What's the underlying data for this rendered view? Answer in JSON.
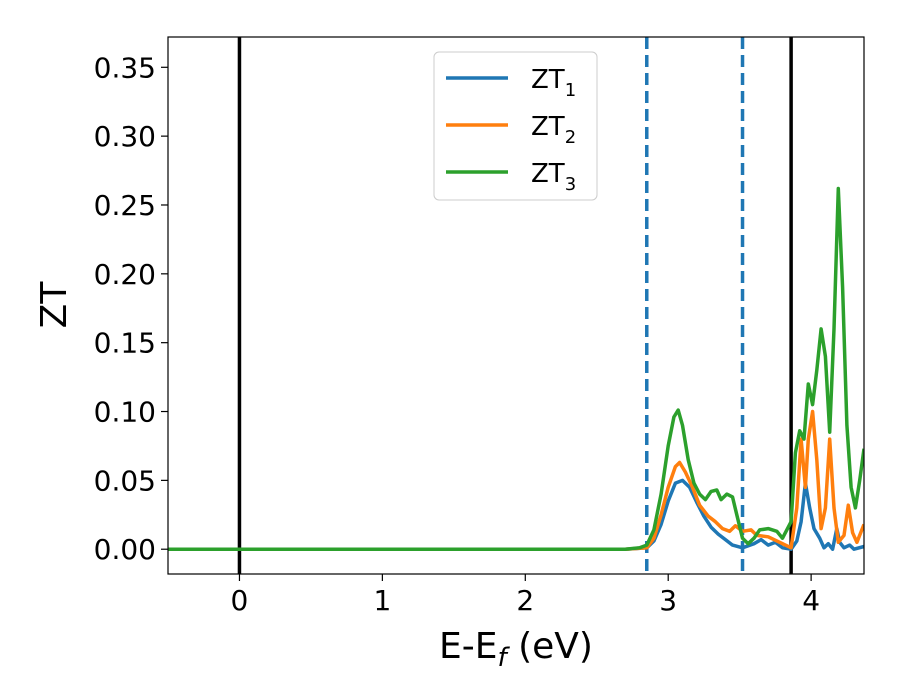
{
  "chart_data": {
    "type": "line",
    "xlabel_main": "E-E",
    "xlabel_sub": "f",
    "xlabel_unit": " (eV)",
    "ylabel": "ZT",
    "xlim": [
      -0.5,
      4.37
    ],
    "ylim": [
      -0.018,
      0.372
    ],
    "x_ticks": [
      0,
      1,
      2,
      3,
      4
    ],
    "x_tick_labels": [
      "0",
      "1",
      "2",
      "3",
      "4"
    ],
    "y_ticks": [
      0.0,
      0.05,
      0.1,
      0.15,
      0.2,
      0.25,
      0.3,
      0.35
    ],
    "y_tick_labels": [
      "0.00",
      "0.05",
      "0.10",
      "0.15",
      "0.20",
      "0.25",
      "0.30",
      "0.35"
    ],
    "grid": false,
    "legend_position": "top-center",
    "vertical_lines": [
      {
        "x": 0.0,
        "style": "solid",
        "color": "#000000"
      },
      {
        "x": 2.85,
        "style": "dashed",
        "color": "#1f77b4"
      },
      {
        "x": 3.52,
        "style": "dashed",
        "color": "#1f77b4"
      },
      {
        "x": 3.86,
        "style": "solid",
        "color": "#000000"
      }
    ],
    "series": [
      {
        "name": "ZT",
        "subscript": "1",
        "color": "#1f77b4",
        "points": [
          [
            -0.5,
            0
          ],
          [
            2.7,
            0
          ],
          [
            2.85,
            0.001
          ],
          [
            2.9,
            0.006
          ],
          [
            2.95,
            0.018
          ],
          [
            3.0,
            0.035
          ],
          [
            3.05,
            0.048
          ],
          [
            3.1,
            0.05
          ],
          [
            3.15,
            0.045
          ],
          [
            3.2,
            0.034
          ],
          [
            3.25,
            0.024
          ],
          [
            3.3,
            0.016
          ],
          [
            3.35,
            0.011
          ],
          [
            3.4,
            0.007
          ],
          [
            3.45,
            0.003
          ],
          [
            3.52,
            0.001
          ],
          [
            3.6,
            0.004
          ],
          [
            3.65,
            0.007
          ],
          [
            3.7,
            0.003
          ],
          [
            3.75,
            0.005
          ],
          [
            3.8,
            0.001
          ],
          [
            3.86,
            0
          ],
          [
            3.9,
            0.006
          ],
          [
            3.93,
            0.02
          ],
          [
            3.96,
            0.048
          ],
          [
            3.99,
            0.03
          ],
          [
            4.02,
            0.015
          ],
          [
            4.06,
            0.008
          ],
          [
            4.09,
            0.001
          ],
          [
            4.12,
            0.004
          ],
          [
            4.15,
            0
          ],
          [
            4.18,
            0.015
          ],
          [
            4.2,
            0.005
          ],
          [
            4.23,
            0.001
          ],
          [
            4.27,
            0.003
          ],
          [
            4.3,
            0
          ],
          [
            4.37,
            0.002
          ]
        ]
      },
      {
        "name": "ZT",
        "subscript": "2",
        "color": "#ff7f0e",
        "points": [
          [
            -0.5,
            0
          ],
          [
            2.7,
            0
          ],
          [
            2.85,
            0.001
          ],
          [
            2.9,
            0.008
          ],
          [
            2.95,
            0.025
          ],
          [
            3.0,
            0.045
          ],
          [
            3.05,
            0.06
          ],
          [
            3.08,
            0.063
          ],
          [
            3.12,
            0.056
          ],
          [
            3.17,
            0.045
          ],
          [
            3.22,
            0.032
          ],
          [
            3.28,
            0.024
          ],
          [
            3.33,
            0.02
          ],
          [
            3.38,
            0.015
          ],
          [
            3.43,
            0.013
          ],
          [
            3.47,
            0.017
          ],
          [
            3.52,
            0.013
          ],
          [
            3.58,
            0.014
          ],
          [
            3.62,
            0.01
          ],
          [
            3.7,
            0.009
          ],
          [
            3.78,
            0.005
          ],
          [
            3.86,
            0.001
          ],
          [
            3.9,
            0.03
          ],
          [
            3.93,
            0.08
          ],
          [
            3.96,
            0.045
          ],
          [
            3.98,
            0.08
          ],
          [
            4.01,
            0.1
          ],
          [
            4.04,
            0.065
          ],
          [
            4.07,
            0.015
          ],
          [
            4.1,
            0.03
          ],
          [
            4.13,
            0.08
          ],
          [
            4.16,
            0.03
          ],
          [
            4.19,
            0.005
          ],
          [
            4.23,
            0.01
          ],
          [
            4.26,
            0.032
          ],
          [
            4.29,
            0.012
          ],
          [
            4.32,
            0.005
          ],
          [
            4.37,
            0.018
          ]
        ]
      },
      {
        "name": "ZT",
        "subscript": "3",
        "color": "#2ca02c",
        "points": [
          [
            -0.5,
            0
          ],
          [
            2.7,
            0
          ],
          [
            2.8,
            0.001
          ],
          [
            2.85,
            0.003
          ],
          [
            2.9,
            0.014
          ],
          [
            2.95,
            0.04
          ],
          [
            3.0,
            0.075
          ],
          [
            3.04,
            0.096
          ],
          [
            3.07,
            0.101
          ],
          [
            3.1,
            0.09
          ],
          [
            3.14,
            0.065
          ],
          [
            3.18,
            0.048
          ],
          [
            3.22,
            0.04
          ],
          [
            3.26,
            0.036
          ],
          [
            3.3,
            0.042
          ],
          [
            3.34,
            0.043
          ],
          [
            3.37,
            0.036
          ],
          [
            3.41,
            0.04
          ],
          [
            3.45,
            0.038
          ],
          [
            3.48,
            0.025
          ],
          [
            3.52,
            0.008
          ],
          [
            3.56,
            0.004
          ],
          [
            3.6,
            0.008
          ],
          [
            3.64,
            0.014
          ],
          [
            3.7,
            0.015
          ],
          [
            3.76,
            0.013
          ],
          [
            3.8,
            0.008
          ],
          [
            3.86,
            0.02
          ],
          [
            3.89,
            0.07
          ],
          [
            3.92,
            0.086
          ],
          [
            3.95,
            0.08
          ],
          [
            3.98,
            0.12
          ],
          [
            4.01,
            0.105
          ],
          [
            4.04,
            0.13
          ],
          [
            4.07,
            0.16
          ],
          [
            4.1,
            0.14
          ],
          [
            4.13,
            0.085
          ],
          [
            4.16,
            0.16
          ],
          [
            4.19,
            0.262
          ],
          [
            4.22,
            0.19
          ],
          [
            4.25,
            0.09
          ],
          [
            4.28,
            0.045
          ],
          [
            4.31,
            0.03
          ],
          [
            4.34,
            0.05
          ],
          [
            4.37,
            0.073
          ]
        ]
      }
    ]
  }
}
